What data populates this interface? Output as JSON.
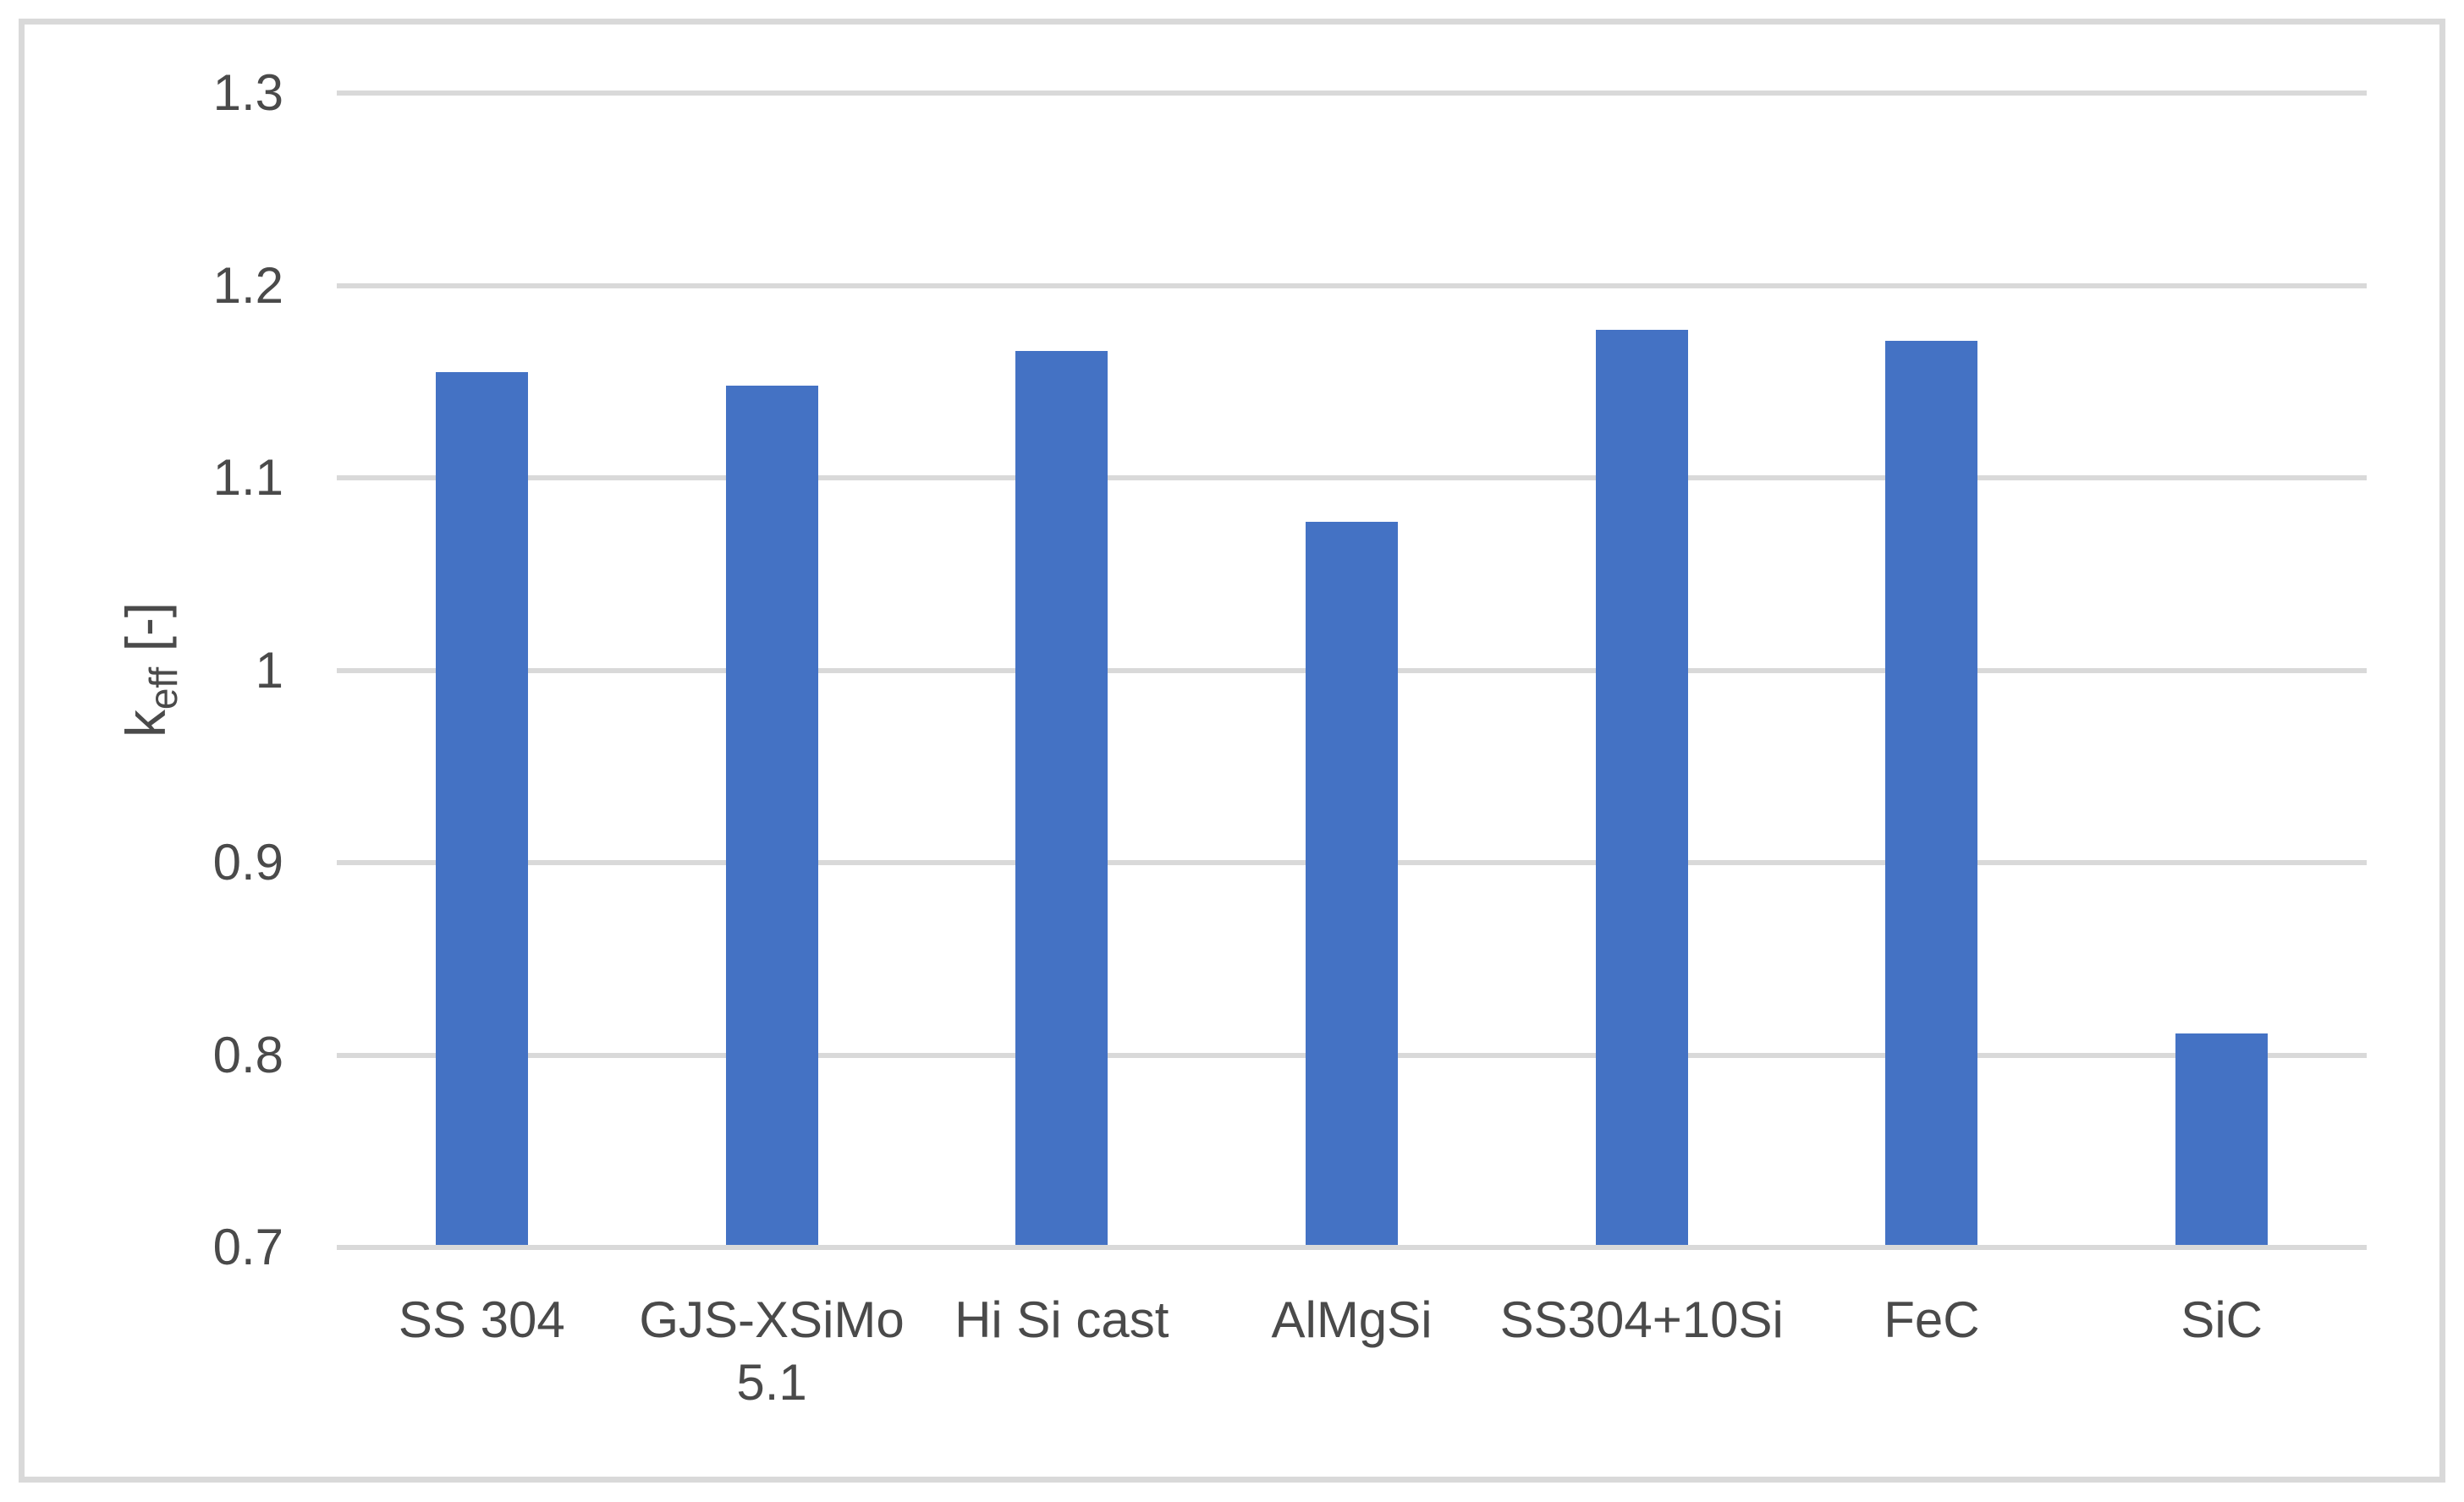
{
  "chart_data": {
    "type": "bar",
    "categories": [
      "SS 304",
      "GJS-XSiMo 5.1",
      "Hi Si cast",
      "AlMgSi",
      "SS304+10Si",
      "FeC",
      "SiC"
    ],
    "values": [
      1.155,
      1.148,
      1.166,
      1.077,
      1.177,
      1.171,
      0.811
    ],
    "title": "",
    "xlabel": "",
    "ylabel": {
      "main": "k",
      "sub": "eff",
      "rest": " [-]"
    },
    "ylim": [
      0.7,
      1.3
    ],
    "ytick_step": 0.1,
    "yticks": [
      "1.3",
      "1.2",
      "1.1",
      "1",
      "0.9",
      "0.8",
      "0.7"
    ],
    "grid": true,
    "legend": false,
    "bar_color": "#4472C4",
    "gridline_color": "#D9D9D9",
    "border_color": "#D9D9D9",
    "axis_text_color": "#4a4a4a"
  }
}
